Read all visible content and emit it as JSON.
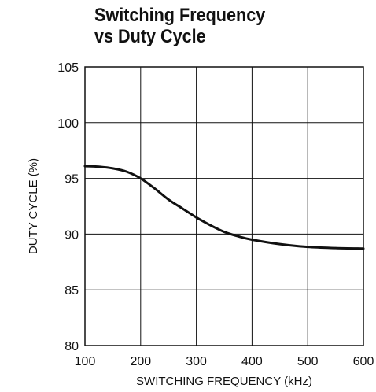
{
  "chart_data": {
    "type": "line",
    "title_lines": [
      "Switching Frequency",
      "vs Duty Cycle"
    ],
    "xlabel": "SWITCHING FREQUENCY (kHz)",
    "ylabel": "DUTY CYCLE (%)",
    "xlim": [
      100,
      600
    ],
    "ylim": [
      80,
      105
    ],
    "x_ticks": [
      100,
      200,
      300,
      400,
      500,
      600
    ],
    "y_ticks": [
      80,
      85,
      90,
      95,
      100,
      105
    ],
    "grid": true,
    "series": [
      {
        "x": [
          100,
          125,
          150,
          175,
          200,
          225,
          250,
          275,
          300,
          325,
          350,
          375,
          400,
          450,
          500,
          550,
          600
        ],
        "y": [
          96.1,
          96.05,
          95.9,
          95.6,
          95.0,
          94.1,
          93.1,
          92.3,
          91.5,
          90.8,
          90.2,
          89.8,
          89.5,
          89.1,
          88.85,
          88.75,
          88.7
        ]
      }
    ]
  }
}
